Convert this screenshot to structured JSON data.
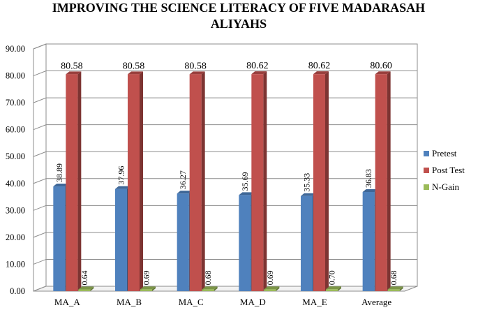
{
  "chart_data": {
    "type": "bar",
    "title_lines": [
      "IMPROVING THE SCIENCE LITERACY OF FIVE MADARASAH",
      "ALIYAHS"
    ],
    "categories": [
      "MA_A",
      "MA_B",
      "MA_C",
      "MA_D",
      "MA_E",
      "Average"
    ],
    "series": [
      {
        "name": "Pretest",
        "values": [
          38.89,
          37.96,
          36.27,
          35.69,
          35.33,
          36.83
        ],
        "color": "#4F81BD"
      },
      {
        "name": "Post Test",
        "values": [
          80.58,
          80.58,
          80.58,
          80.62,
          80.62,
          80.6
        ],
        "color": "#C0504D"
      },
      {
        "name": "N-Gain",
        "values": [
          0.64,
          0.69,
          0.68,
          0.69,
          0.7,
          0.68
        ],
        "color": "#9BBB59"
      }
    ],
    "ylim": [
      0,
      90
    ],
    "yticks": [
      "0.00",
      "10.00",
      "20.00",
      "30.00",
      "40.00",
      "50.00",
      "60.00",
      "70.00",
      "80.00",
      "90.00"
    ],
    "grid": true,
    "legend_position": "right",
    "style": "3d-clustered-columns"
  }
}
